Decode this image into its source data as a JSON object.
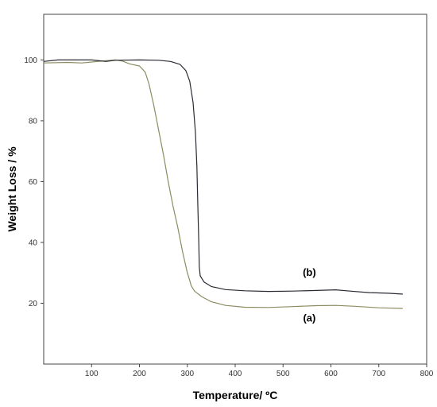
{
  "chart_data": {
    "type": "line",
    "title": "",
    "xlabel": "Temperature/ ºC",
    "ylabel": "Weight Loss / %",
    "xlim": [
      0,
      800
    ],
    "ylim": [
      0,
      115
    ],
    "xticks": [
      100,
      200,
      300,
      400,
      500,
      600,
      700,
      800
    ],
    "yticks": [
      20,
      40,
      60,
      80,
      100
    ],
    "grid": false,
    "legend": "none",
    "series": [
      {
        "name": "(a)",
        "color": "#8c8c62",
        "points": [
          [
            0,
            99.0
          ],
          [
            50,
            99.2
          ],
          [
            80,
            99.0
          ],
          [
            120,
            99.6
          ],
          [
            150,
            100.0
          ],
          [
            165,
            99.6
          ],
          [
            180,
            98.7
          ],
          [
            200,
            98.0
          ],
          [
            212,
            96.0
          ],
          [
            220,
            92.0
          ],
          [
            230,
            85.0
          ],
          [
            240,
            77.0
          ],
          [
            250,
            69.0
          ],
          [
            260,
            60.0
          ],
          [
            270,
            52.0
          ],
          [
            280,
            45.0
          ],
          [
            290,
            37.0
          ],
          [
            300,
            30.0
          ],
          [
            305,
            27.5
          ],
          [
            308,
            25.8
          ],
          [
            315,
            24.0
          ],
          [
            330,
            22.2
          ],
          [
            350,
            20.5
          ],
          [
            380,
            19.3
          ],
          [
            420,
            18.7
          ],
          [
            470,
            18.6
          ],
          [
            520,
            18.9
          ],
          [
            570,
            19.2
          ],
          [
            610,
            19.3
          ],
          [
            650,
            19.0
          ],
          [
            700,
            18.5
          ],
          [
            750,
            18.3
          ]
        ]
      },
      {
        "name": "(b)",
        "color": "#2a2a33",
        "points": [
          [
            0,
            99.5
          ],
          [
            30,
            100.0
          ],
          [
            100,
            100.0
          ],
          [
            130,
            99.5
          ],
          [
            150,
            99.9
          ],
          [
            200,
            100.0
          ],
          [
            240,
            99.9
          ],
          [
            265,
            99.5
          ],
          [
            285,
            98.5
          ],
          [
            297,
            96.5
          ],
          [
            305,
            93.0
          ],
          [
            312,
            86.0
          ],
          [
            317,
            76.0
          ],
          [
            320,
            65.0
          ],
          [
            322,
            52.0
          ],
          [
            324,
            40.0
          ],
          [
            325,
            32.0
          ],
          [
            327,
            29.0
          ],
          [
            335,
            27.0
          ],
          [
            350,
            25.5
          ],
          [
            380,
            24.5
          ],
          [
            420,
            24.1
          ],
          [
            470,
            23.9
          ],
          [
            520,
            24.0
          ],
          [
            570,
            24.2
          ],
          [
            610,
            24.4
          ],
          [
            640,
            24.0
          ],
          [
            680,
            23.5
          ],
          [
            720,
            23.3
          ],
          [
            750,
            23.0
          ]
        ]
      }
    ],
    "annotations": [
      {
        "text": "(b)",
        "x": 555,
        "y": 29
      },
      {
        "text": "(a)",
        "x": 555,
        "y": 14
      }
    ]
  }
}
